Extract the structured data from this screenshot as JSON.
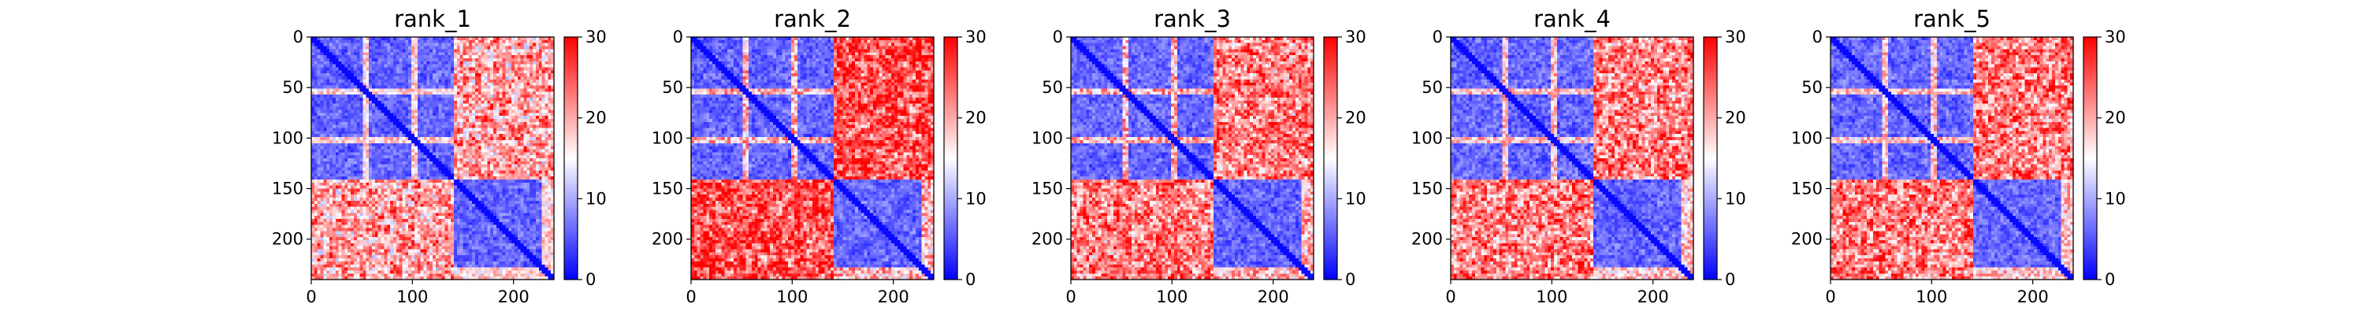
{
  "chart_data": [
    {
      "type": "heatmap",
      "title": "rank_1",
      "variant": 1,
      "xlim": [
        0,
        240
      ],
      "ylim": [
        240,
        0
      ],
      "x_ticks": [
        0,
        100,
        200
      ],
      "y_ticks": [
        0,
        50,
        100,
        150,
        200
      ],
      "colorbar": {
        "min": 0,
        "max": 30,
        "ticks": [
          0,
          10,
          20,
          30
        ],
        "colors": [
          "#0000ff",
          "#ffffff",
          "#ff0000"
        ]
      }
    },
    {
      "type": "heatmap",
      "title": "rank_2",
      "variant": 2,
      "xlim": [
        0,
        240
      ],
      "ylim": [
        240,
        0
      ],
      "x_ticks": [
        0,
        100,
        200
      ],
      "y_ticks": [
        0,
        50,
        100,
        150,
        200
      ],
      "colorbar": {
        "min": 0,
        "max": 30,
        "ticks": [
          0,
          10,
          20,
          30
        ],
        "colors": [
          "#0000ff",
          "#ffffff",
          "#ff0000"
        ]
      }
    },
    {
      "type": "heatmap",
      "title": "rank_3",
      "variant": 3,
      "xlim": [
        0,
        240
      ],
      "ylim": [
        240,
        0
      ],
      "x_ticks": [
        0,
        100,
        200
      ],
      "y_ticks": [
        0,
        50,
        100,
        150,
        200
      ],
      "colorbar": {
        "min": 0,
        "max": 30,
        "ticks": [
          0,
          10,
          20,
          30
        ],
        "colors": [
          "#0000ff",
          "#ffffff",
          "#ff0000"
        ]
      }
    },
    {
      "type": "heatmap",
      "title": "rank_4",
      "variant": 4,
      "xlim": [
        0,
        240
      ],
      "ylim": [
        240,
        0
      ],
      "x_ticks": [
        0,
        100,
        200
      ],
      "y_ticks": [
        0,
        50,
        100,
        150,
        200
      ],
      "colorbar": {
        "min": 0,
        "max": 30,
        "ticks": [
          0,
          10,
          20,
          30
        ],
        "colors": [
          "#0000ff",
          "#ffffff",
          "#ff0000"
        ]
      }
    },
    {
      "type": "heatmap",
      "title": "rank_5",
      "variant": 5,
      "xlim": [
        0,
        240
      ],
      "ylim": [
        240,
        0
      ],
      "x_ticks": [
        0,
        100,
        200
      ],
      "y_ticks": [
        0,
        50,
        100,
        150,
        200
      ],
      "colorbar": {
        "min": 0,
        "max": 30,
        "ticks": [
          0,
          10,
          20,
          30
        ],
        "colors": [
          "#0000ff",
          "#ffffff",
          "#ff0000"
        ]
      }
    }
  ]
}
